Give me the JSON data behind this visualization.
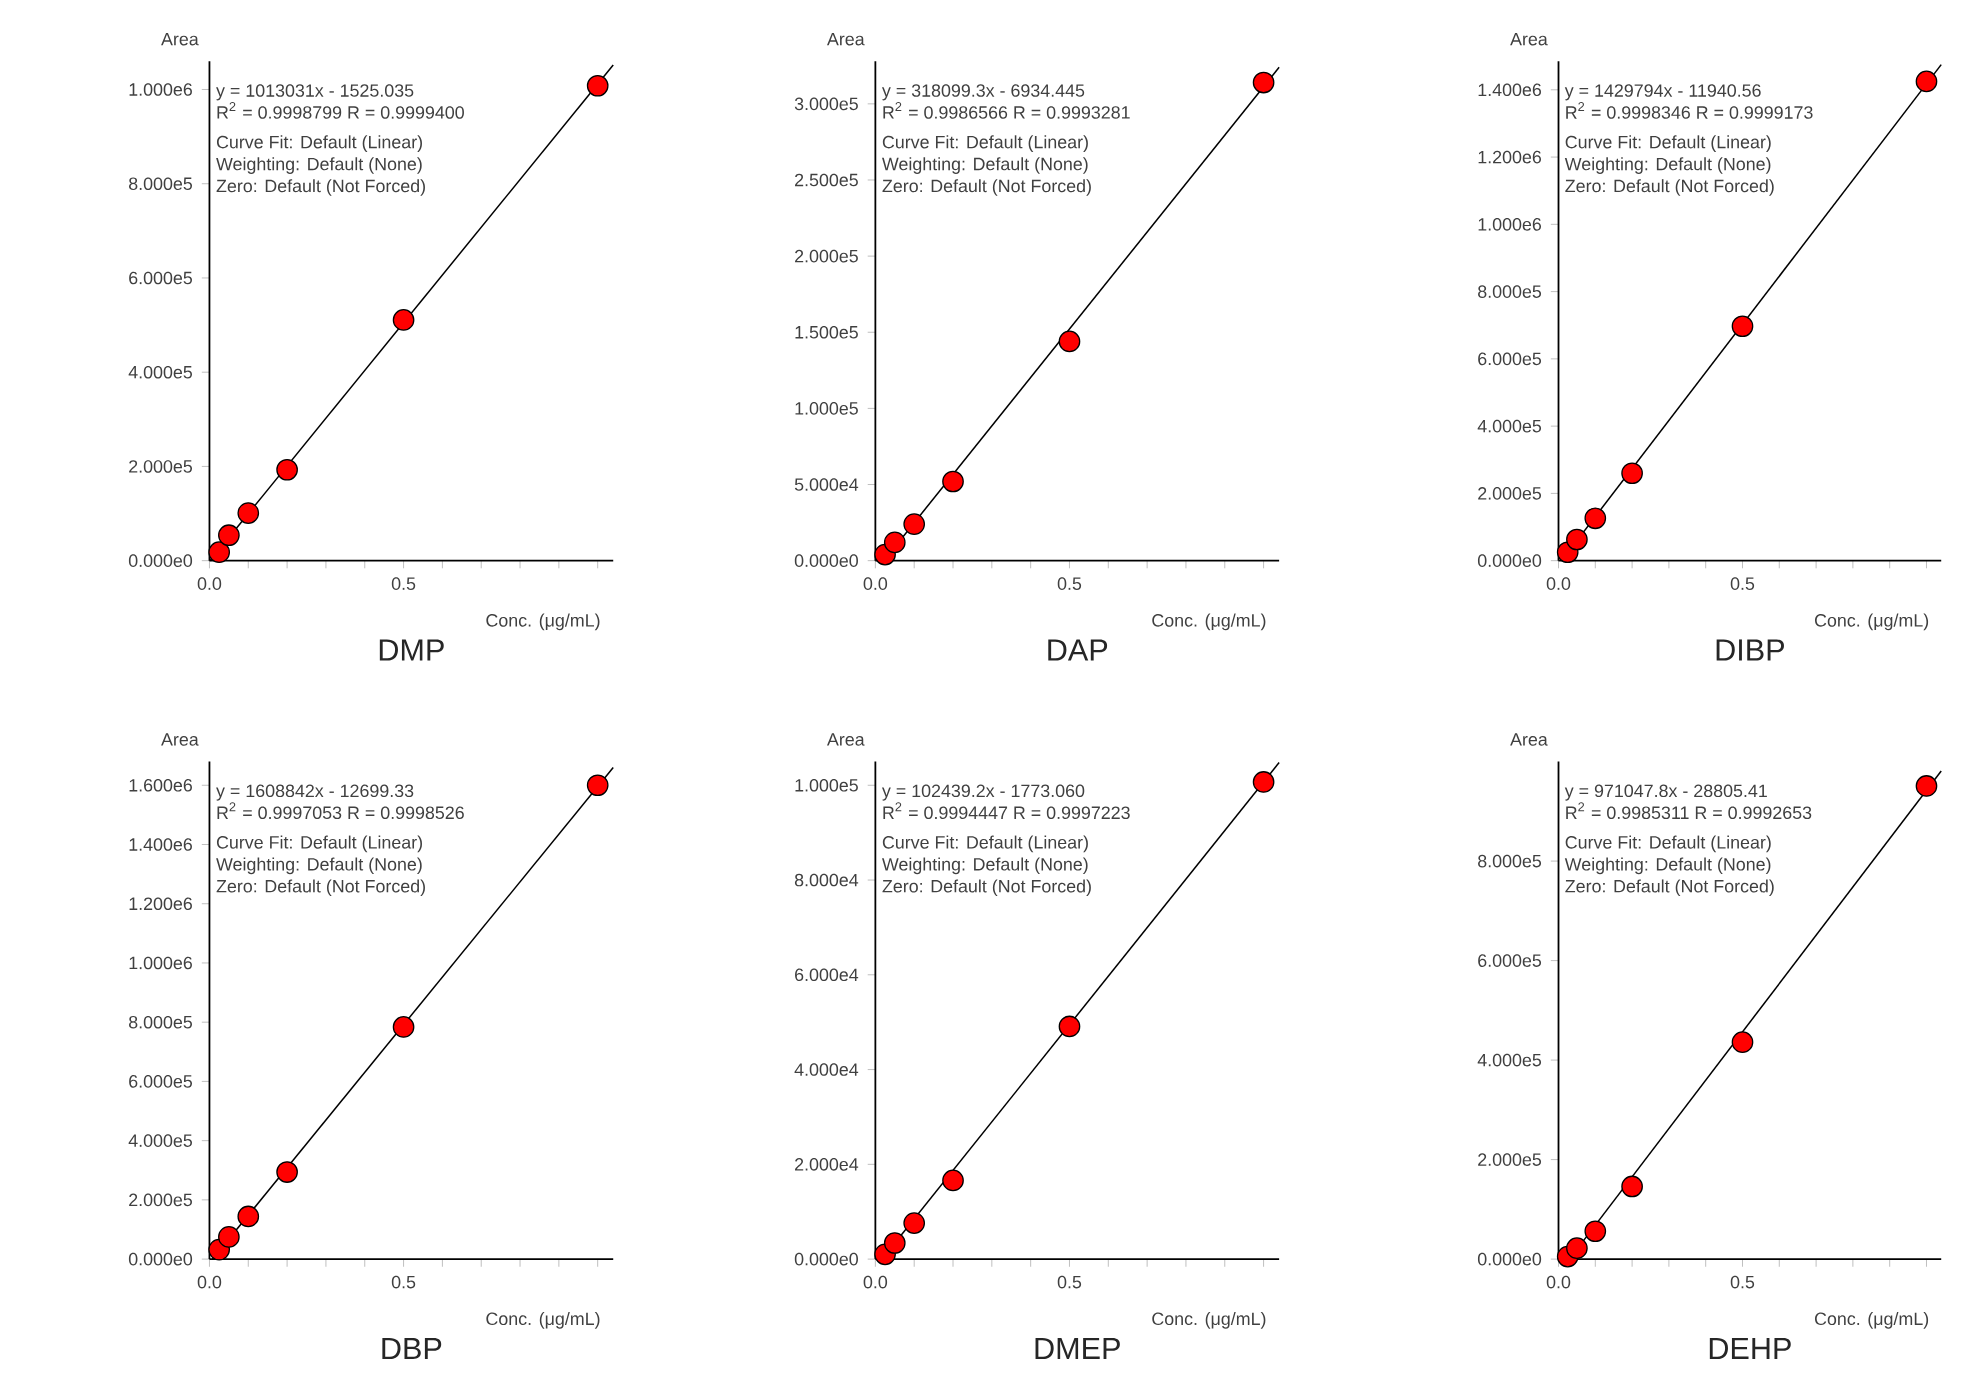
{
  "chart_data": [
    {
      "type": "scatter",
      "title": "DMP",
      "xlabel": "Conc. (μg/mL)",
      "ylabel": "Area",
      "x": [
        0.025,
        0.05,
        0.1,
        0.2,
        0.5,
        1.0
      ],
      "xlim": [
        0,
        1.04
      ],
      "ylim": [
        0,
        1060000
      ],
      "xticks": [
        {
          "value": 0,
          "label": "0.0"
        },
        {
          "value": 0.1,
          "label": null
        },
        {
          "value": 0.2,
          "label": null
        },
        {
          "value": 0.3,
          "label": null
        },
        {
          "value": 0.4,
          "label": null
        },
        {
          "value": 0.5,
          "label": "0.5"
        },
        {
          "value": 0.6,
          "label": null
        },
        {
          "value": 0.7,
          "label": null
        },
        {
          "value": 0.8,
          "label": null
        },
        {
          "value": 0.9,
          "label": null
        },
        {
          "value": 1.0,
          "label": null
        }
      ],
      "yticks": [
        {
          "value": 0,
          "label": "0.000e0"
        },
        {
          "value": 200000,
          "label": "2.000e5"
        },
        {
          "value": 400000,
          "label": "4.000e5"
        },
        {
          "value": 600000,
          "label": "6.000e5"
        },
        {
          "value": 800000,
          "label": "8.000e5"
        },
        {
          "value": 1000000,
          "label": "1.000e6"
        }
      ],
      "annotations": [
        "y = 1013031x - 1525.035",
        "R$^{2}$ = 0.9998799   R = 0.9999400",
        "Curve Fit: Default (Linear)",
        "Weighting: Default (None)",
        "Zero: Default (Not Forced)"
      ],
      "series": [
        {
          "marker": "circle",
          "color": "#ff0000",
          "values": [
            18000,
            54000,
            101000,
            193000,
            511000,
            1008000
          ]
        },
        {
          "type": "line",
          "marker": "none",
          "line_style": "solid",
          "color": "#000000",
          "x": [
            0.0015,
            1.04
          ],
          "values": [
            0,
            1052000
          ]
        }
      ]
    },
    {
      "type": "scatter",
      "title": "DAP",
      "xlabel": "Conc. (μg/mL)",
      "ylabel": "Area",
      "x": [
        0.025,
        0.05,
        0.1,
        0.2,
        0.5,
        1.0
      ],
      "xlim": [
        0,
        1.04
      ],
      "ylim": [
        0,
        328000
      ],
      "xticks": [
        {
          "value": 0,
          "label": "0.0"
        },
        {
          "value": 0.1,
          "label": null
        },
        {
          "value": 0.2,
          "label": null
        },
        {
          "value": 0.3,
          "label": null
        },
        {
          "value": 0.4,
          "label": null
        },
        {
          "value": 0.5,
          "label": "0.5"
        },
        {
          "value": 0.6,
          "label": null
        },
        {
          "value": 0.7,
          "label": null
        },
        {
          "value": 0.8,
          "label": null
        },
        {
          "value": 0.9,
          "label": null
        },
        {
          "value": 1.0,
          "label": null
        }
      ],
      "yticks": [
        {
          "value": 0,
          "label": "0.000e0"
        },
        {
          "value": 50000,
          "label": "5.000e4"
        },
        {
          "value": 100000,
          "label": "1.000e5"
        },
        {
          "value": 150000,
          "label": "1.500e5"
        },
        {
          "value": 200000,
          "label": "2.000e5"
        },
        {
          "value": 250000,
          "label": "2.500e5"
        },
        {
          "value": 300000,
          "label": "3.000e5"
        }
      ],
      "annotations": [
        "y = 318099.3x - 6934.445",
        "R$^{2}$ = 0.9986566   R = 0.9993281",
        "Curve Fit: Default (Linear)",
        "Weighting: Default (None)",
        "Zero: Default (Not Forced)"
      ],
      "series": [
        {
          "marker": "circle",
          "color": "#ff0000",
          "values": [
            4000,
            12000,
            24000,
            52000,
            144000,
            314000
          ]
        },
        {
          "type": "line",
          "marker": "none",
          "line_style": "solid",
          "color": "#000000",
          "x": [
            0.0218,
            1.04
          ],
          "values": [
            0,
            324000
          ]
        }
      ]
    },
    {
      "type": "scatter",
      "title": "DIBP",
      "xlabel": "Conc. (μg/mL)",
      "ylabel": "Area",
      "x": [
        0.025,
        0.05,
        0.1,
        0.2,
        0.5,
        1.0
      ],
      "xlim": [
        0,
        1.04
      ],
      "ylim": [
        0,
        1485000
      ],
      "xticks": [
        {
          "value": 0,
          "label": "0.0"
        },
        {
          "value": 0.1,
          "label": null
        },
        {
          "value": 0.2,
          "label": null
        },
        {
          "value": 0.3,
          "label": null
        },
        {
          "value": 0.4,
          "label": null
        },
        {
          "value": 0.5,
          "label": "0.5"
        },
        {
          "value": 0.6,
          "label": null
        },
        {
          "value": 0.7,
          "label": null
        },
        {
          "value": 0.8,
          "label": null
        },
        {
          "value": 0.9,
          "label": null
        },
        {
          "value": 1.0,
          "label": null
        }
      ],
      "yticks": [
        {
          "value": 0,
          "label": "0.000e0"
        },
        {
          "value": 200000,
          "label": "2.000e5"
        },
        {
          "value": 400000,
          "label": "4.000e5"
        },
        {
          "value": 600000,
          "label": "6.000e5"
        },
        {
          "value": 800000,
          "label": "8.000e5"
        },
        {
          "value": 1000000,
          "label": "1.000e6"
        },
        {
          "value": 1200000,
          "label": "1.200e6"
        },
        {
          "value": 1400000,
          "label": "1.400e6"
        }
      ],
      "annotations": [
        "y = 1429794x - 11940.56",
        "R$^{2}$ = 0.9998346   R = 0.9999173",
        "Curve Fit: Default (Linear)",
        "Weighting: Default (None)",
        "Zero: Default (Not Forced)"
      ],
      "series": [
        {
          "marker": "circle",
          "color": "#ff0000",
          "values": [
            25000,
            63000,
            126000,
            260000,
            697000,
            1425000
          ]
        },
        {
          "type": "line",
          "marker": "none",
          "line_style": "solid",
          "color": "#000000",
          "x": [
            0.0084,
            1.04
          ],
          "values": [
            0,
            1475000
          ]
        }
      ]
    },
    {
      "type": "scatter",
      "title": "DBP",
      "xlabel": "Conc. (μg/mL)",
      "ylabel": "Area",
      "x": [
        0.025,
        0.05,
        0.1,
        0.2,
        0.5,
        1.0
      ],
      "xlim": [
        0,
        1.04
      ],
      "ylim": [
        0,
        1680000
      ],
      "xticks": [
        {
          "value": 0,
          "label": "0.0"
        },
        {
          "value": 0.1,
          "label": null
        },
        {
          "value": 0.2,
          "label": null
        },
        {
          "value": 0.3,
          "label": null
        },
        {
          "value": 0.4,
          "label": null
        },
        {
          "value": 0.5,
          "label": "0.5"
        },
        {
          "value": 0.6,
          "label": null
        },
        {
          "value": 0.7,
          "label": null
        },
        {
          "value": 0.8,
          "label": null
        },
        {
          "value": 0.9,
          "label": null
        },
        {
          "value": 1.0,
          "label": null
        }
      ],
      "yticks": [
        {
          "value": 0,
          "label": "0.000e0"
        },
        {
          "value": 200000,
          "label": "2.000e5"
        },
        {
          "value": 400000,
          "label": "4.000e5"
        },
        {
          "value": 600000,
          "label": "6.000e5"
        },
        {
          "value": 800000,
          "label": "8.000e5"
        },
        {
          "value": 1000000,
          "label": "1.000e6"
        },
        {
          "value": 1200000,
          "label": "1.200e6"
        },
        {
          "value": 1400000,
          "label": "1.400e6"
        },
        {
          "value": 1600000,
          "label": "1.600e6"
        }
      ],
      "annotations": [
        "y = 1608842x - 12699.33",
        "R$^{2}$ = 0.9997053   R = 0.9998526",
        "Curve Fit: Default (Linear)",
        "Weighting: Default (None)",
        "Zero: Default (Not Forced)"
      ],
      "series": [
        {
          "marker": "circle",
          "color": "#ff0000",
          "values": [
            32000,
            75000,
            144000,
            294000,
            784000,
            1600000
          ]
        },
        {
          "type": "line",
          "marker": "none",
          "line_style": "solid",
          "color": "#000000",
          "x": [
            0.0079,
            1.04
          ],
          "values": [
            0,
            1660000
          ]
        }
      ]
    },
    {
      "type": "scatter",
      "title": "DMEP",
      "xlabel": "Conc. (μg/mL)",
      "ylabel": "Area",
      "x": [
        0.025,
        0.05,
        0.1,
        0.2,
        0.5,
        1.0
      ],
      "xlim": [
        0,
        1.04
      ],
      "ylim": [
        0,
        105000
      ],
      "xticks": [
        {
          "value": 0,
          "label": "0.0"
        },
        {
          "value": 0.1,
          "label": null
        },
        {
          "value": 0.2,
          "label": null
        },
        {
          "value": 0.3,
          "label": null
        },
        {
          "value": 0.4,
          "label": null
        },
        {
          "value": 0.5,
          "label": "0.5"
        },
        {
          "value": 0.6,
          "label": null
        },
        {
          "value": 0.7,
          "label": null
        },
        {
          "value": 0.8,
          "label": null
        },
        {
          "value": 0.9,
          "label": null
        },
        {
          "value": 1.0,
          "label": null
        }
      ],
      "yticks": [
        {
          "value": 0,
          "label": "0.000e0"
        },
        {
          "value": 20000,
          "label": "2.000e4"
        },
        {
          "value": 40000,
          "label": "4.000e4"
        },
        {
          "value": 60000,
          "label": "6.000e4"
        },
        {
          "value": 80000,
          "label": "8.000e4"
        },
        {
          "value": 100000,
          "label": "1.000e5"
        }
      ],
      "annotations": [
        "y = 102439.2x - 1773.060",
        "R$^{2}$ = 0.9994447   R = 0.9997223",
        "Curve Fit: Default (Linear)",
        "Weighting: Default (None)",
        "Zero: Default (Not Forced)"
      ],
      "series": [
        {
          "marker": "circle",
          "color": "#ff0000",
          "values": [
            1000,
            3400,
            7600,
            16600,
            49100,
            100700
          ]
        },
        {
          "type": "line",
          "marker": "none",
          "line_style": "solid",
          "color": "#000000",
          "x": [
            0.0173,
            1.04
          ],
          "values": [
            0,
            104800
          ]
        }
      ]
    },
    {
      "type": "scatter",
      "title": "DEHP",
      "xlabel": "Conc. (μg/mL)",
      "ylabel": "Area",
      "x": [
        0.025,
        0.05,
        0.1,
        0.2,
        0.5,
        1.0
      ],
      "xlim": [
        0,
        1.04
      ],
      "ylim": [
        0,
        1000000
      ],
      "xticks": [
        {
          "value": 0,
          "label": "0.0"
        },
        {
          "value": 0.1,
          "label": null
        },
        {
          "value": 0.2,
          "label": null
        },
        {
          "value": 0.3,
          "label": null
        },
        {
          "value": 0.4,
          "label": null
        },
        {
          "value": 0.5,
          "label": "0.5"
        },
        {
          "value": 0.6,
          "label": null
        },
        {
          "value": 0.7,
          "label": null
        },
        {
          "value": 0.8,
          "label": null
        },
        {
          "value": 0.9,
          "label": null
        },
        {
          "value": 1.0,
          "label": null
        }
      ],
      "yticks": [
        {
          "value": 0,
          "label": "0.000e0"
        },
        {
          "value": 200000,
          "label": "2.000e5"
        },
        {
          "value": 400000,
          "label": "4.000e5"
        },
        {
          "value": 600000,
          "label": "6.000e5"
        },
        {
          "value": 800000,
          "label": "8.000e5"
        }
      ],
      "annotations": [
        "y = 971047.8x - 28805.41",
        "R$^{2}$ = 0.9985311   R = 0.9992653",
        "Curve Fit: Default (Linear)",
        "Weighting: Default (None)",
        "Zero: Default (Not Forced)"
      ],
      "series": [
        {
          "marker": "circle",
          "color": "#ff0000",
          "values": [
            5000,
            22000,
            56000,
            146000,
            436000,
            951000
          ]
        },
        {
          "type": "line",
          "marker": "none",
          "line_style": "solid",
          "color": "#000000",
          "x": [
            0.0297,
            1.04
          ],
          "values": [
            0,
            981000
          ]
        }
      ]
    }
  ]
}
